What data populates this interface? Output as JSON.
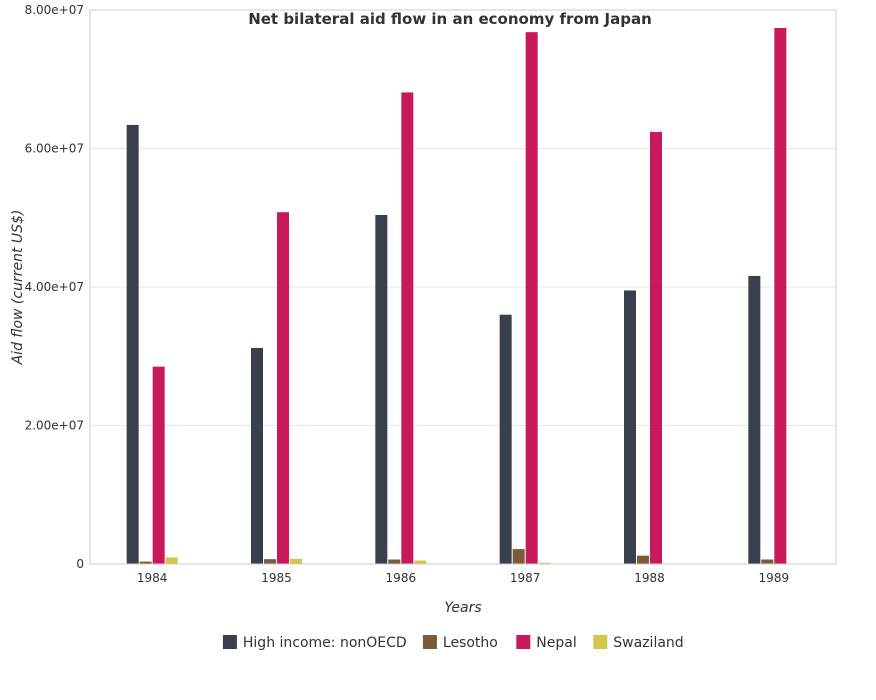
{
  "chart_data": {
    "type": "bar",
    "title": "Net bilateral aid flow in an economy from Japan",
    "xlabel": "Years",
    "ylabel": "Aid flow (current US$)",
    "categories": [
      "1984",
      "1985",
      "1986",
      "1987",
      "1988",
      "1989"
    ],
    "ylim": [
      0,
      80000000
    ],
    "yticks": [
      0,
      20000000,
      40000000,
      60000000,
      80000000
    ],
    "ytick_labels": [
      "0",
      "2.00e+07",
      "4.00e+07",
      "6.00e+07",
      "8.00e+07"
    ],
    "grid": true,
    "legend_position": "bottom",
    "series": [
      {
        "name": "High income: nonOECD",
        "color": "#3a3f4e",
        "values": [
          63400000,
          31200000,
          50400000,
          36000000,
          39500000,
          41600000
        ]
      },
      {
        "name": "Lesotho",
        "color": "#7a5b3a",
        "values": [
          350000,
          700000,
          650000,
          2150000,
          1200000,
          650000
        ]
      },
      {
        "name": "Nepal",
        "color": "#c8195a",
        "values": [
          28500000,
          50800000,
          68100000,
          76800000,
          62400000,
          77400000
        ]
      },
      {
        "name": "Swaziland",
        "color": "#d4c64a",
        "values": [
          950000,
          750000,
          500000,
          180000,
          50000,
          30000
        ]
      }
    ]
  }
}
